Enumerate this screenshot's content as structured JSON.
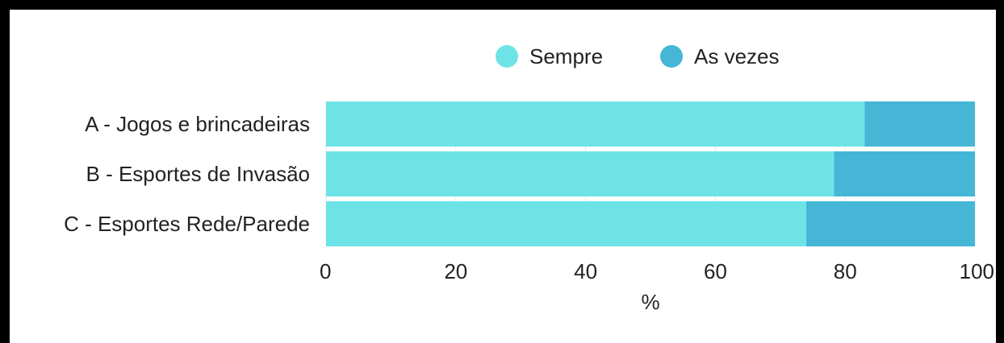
{
  "chart_data": {
    "type": "bar",
    "orientation": "horizontal",
    "stacked": true,
    "categories": [
      "A - Jogos e brincadeiras",
      "B - Esportes de Invasão",
      "C - Esportes Rede/Parede"
    ],
    "series": [
      {
        "name": "Sempre",
        "values": [
          83,
          78.3,
          74
        ],
        "color": "#6ee3e6"
      },
      {
        "name": "As vezes",
        "values": [
          17,
          21.7,
          26
        ],
        "color": "#45b6d6"
      }
    ],
    "xlabel": "%",
    "ylabel": "",
    "xlim": [
      0,
      100
    ],
    "xticks": [
      0,
      20,
      40,
      60,
      80,
      100
    ],
    "legend_position": "top",
    "grid": true
  }
}
